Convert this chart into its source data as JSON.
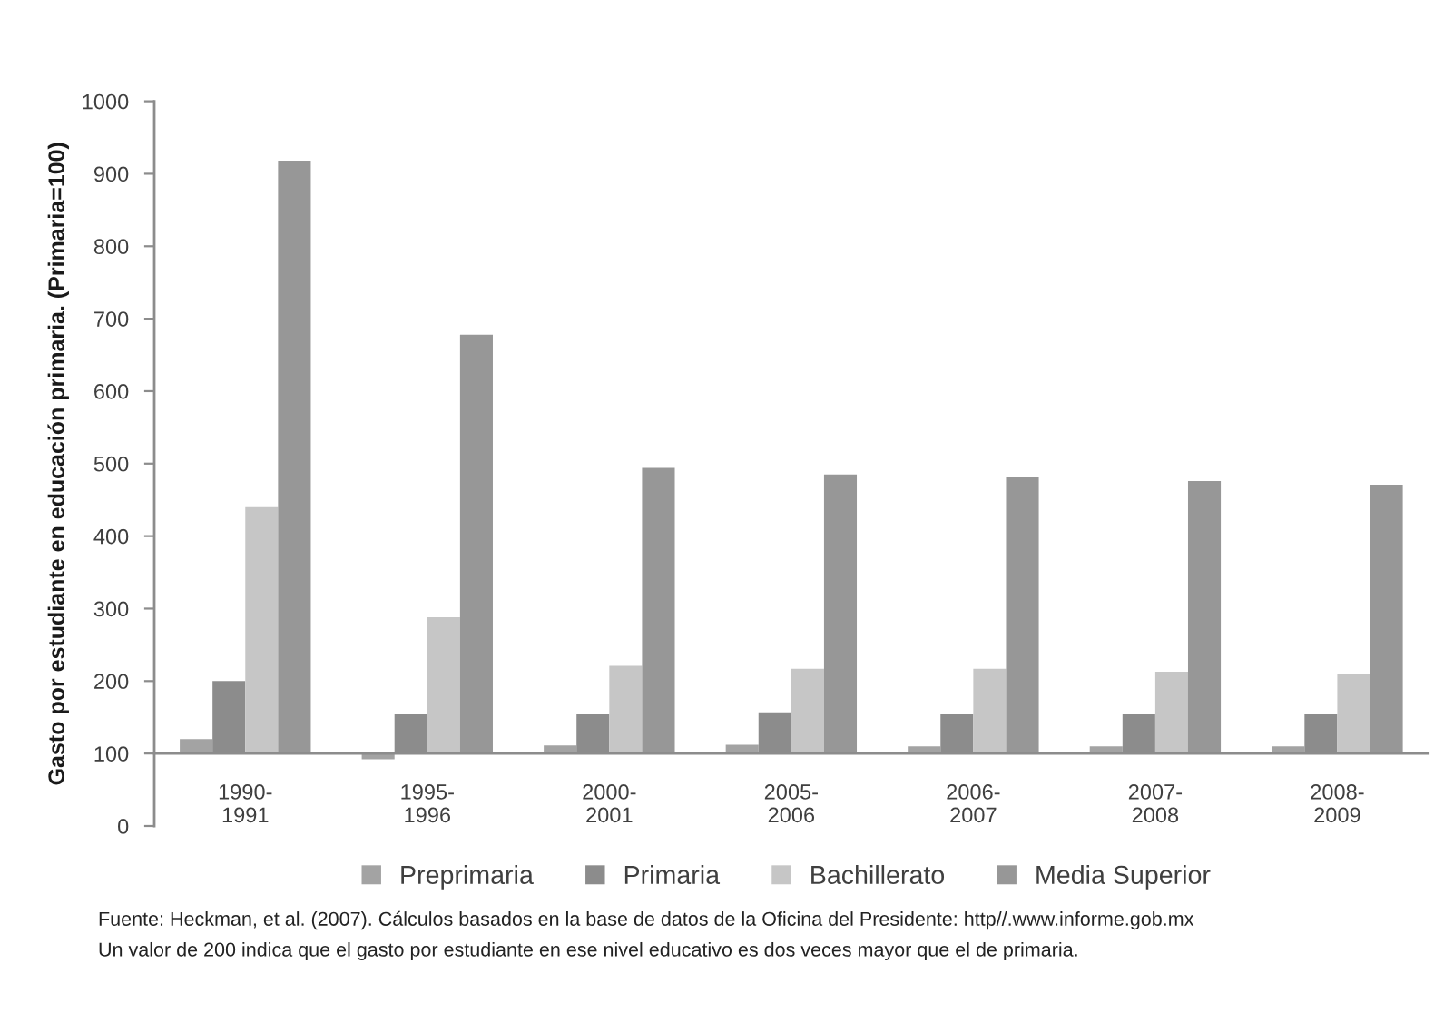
{
  "chart_data": {
    "type": "bar",
    "ylabel": "Gasto por estudiante en educación primaria. (Primaria=100)",
    "categories": [
      "1990-1991",
      "1995-1996",
      "2000-2001",
      "2005-2006",
      "2006-2007",
      "2007-2008",
      "2008-2009"
    ],
    "series": [
      {
        "name": "Preprimaria",
        "color": "#a3a3a3",
        "values": [
          20,
          -8,
          11,
          12,
          10,
          10,
          10
        ],
        "base": [
          100,
          100,
          100,
          100,
          100,
          100,
          100
        ]
      },
      {
        "name": "Primaria",
        "color": "#8c8c8c",
        "values": [
          100,
          54,
          54,
          57,
          54,
          54,
          54
        ],
        "base": [
          100,
          100,
          100,
          100,
          100,
          100,
          100
        ]
      },
      {
        "name": "Bachillerato",
        "color": "#c6c6c6",
        "values": [
          340,
          188,
          121,
          117,
          117,
          113,
          110
        ],
        "base": [
          100,
          100,
          100,
          100,
          100,
          100,
          100
        ]
      },
      {
        "name": "Media Superior",
        "color": "#979797",
        "values": [
          818,
          578,
          394,
          385,
          382,
          376,
          371
        ],
        "base": [
          100,
          100,
          100,
          100,
          100,
          100,
          100
        ]
      }
    ],
    "ylim": [
      0,
      1000
    ],
    "yticks": [
      0,
      100,
      200,
      300,
      400,
      500,
      600,
      700,
      800,
      900,
      1000
    ],
    "legend": "bottom",
    "annotations": [
      "Fuente: Heckman, et al. (2007). Cálculos basados en la base de datos de la Oficina del Presidente: http//.www.informe.gob.mx",
      "Un valor de 200 indica que el gasto por estudiante en ese nivel educativo es dos veces mayor que el de primaria."
    ]
  }
}
